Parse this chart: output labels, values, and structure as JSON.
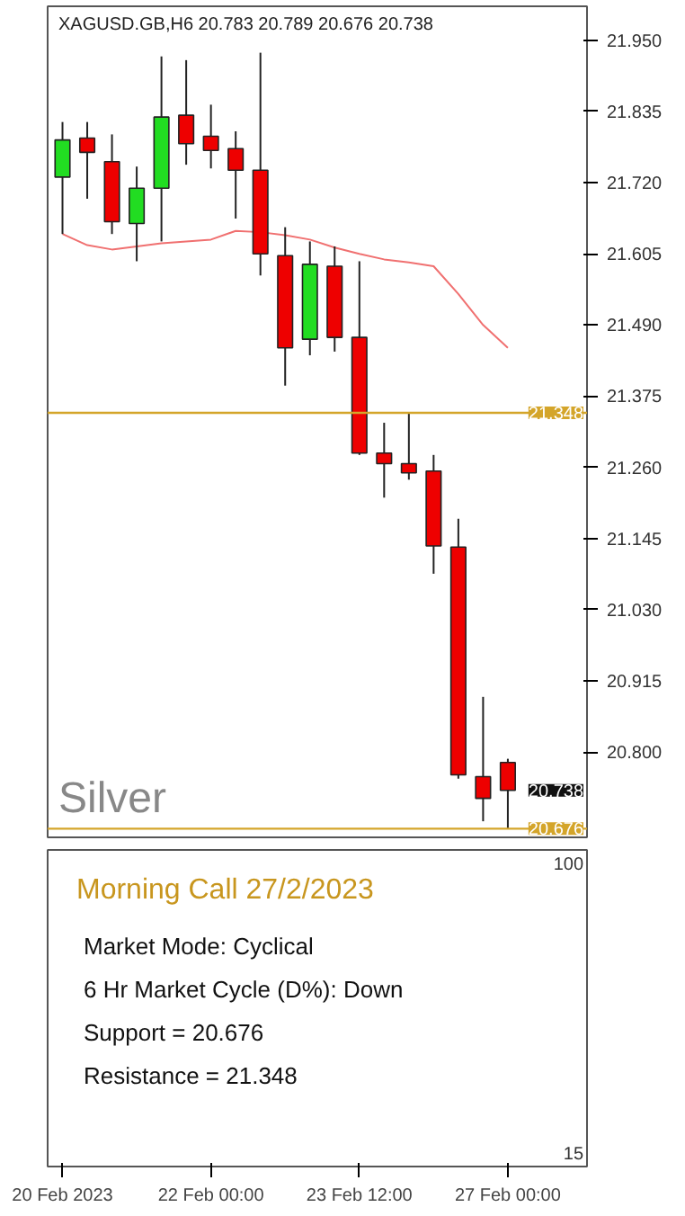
{
  "chart_data": [
    {
      "type": "candlestick",
      "title": "XAGUSD.GB,H6  20.783 20.789 20.676 20.738",
      "categories": [
        "20 Feb 2023",
        null,
        null,
        null,
        null,
        null,
        "22 Feb 00:00",
        null,
        null,
        null,
        null,
        null,
        "23 Feb 12:00",
        null,
        null,
        null,
        null,
        null,
        "27 Feb 00:00"
      ],
      "ohlc": [
        [
          21.729,
          21.818,
          21.637,
          21.789
        ],
        [
          21.792,
          21.818,
          21.694,
          21.769
        ],
        [
          21.754,
          21.798,
          21.637,
          21.657
        ],
        [
          21.654,
          21.746,
          21.593,
          21.711
        ],
        [
          21.711,
          21.924,
          21.625,
          21.826
        ],
        [
          21.829,
          21.918,
          21.749,
          21.783
        ],
        [
          21.795,
          21.846,
          21.743,
          21.772
        ],
        [
          21.775,
          21.803,
          21.662,
          21.74
        ],
        [
          21.74,
          21.93,
          21.57,
          21.605
        ],
        [
          21.602,
          21.648,
          21.392,
          21.453
        ],
        [
          21.467,
          21.625,
          21.441,
          21.588
        ],
        [
          21.585,
          21.617,
          21.447,
          21.47
        ],
        [
          21.47,
          21.593,
          21.28,
          21.283
        ],
        [
          21.283,
          21.332,
          21.211,
          21.266
        ],
        [
          21.266,
          21.349,
          21.24,
          21.251
        ],
        [
          21.254,
          21.28,
          21.088,
          21.133
        ],
        [
          21.131,
          21.177,
          20.757,
          20.763
        ],
        [
          20.76,
          20.889,
          20.688,
          20.725
        ],
        [
          20.783,
          20.789,
          20.676,
          20.738
        ]
      ],
      "colors": [
        "#22dd22",
        "#ee0000",
        "#ee0000",
        "#22dd22",
        "#22dd22",
        "#ee0000",
        "#ee0000",
        "#ee0000",
        "#ee0000",
        "#ee0000",
        "#22dd22",
        "#ee0000",
        "#ee0000",
        "#ee0000",
        "#ee0000",
        "#ee0000",
        "#ee0000",
        "#ee0000",
        "#ee0000"
      ],
      "series": [
        {
          "type": "line",
          "color": "#f07070",
          "values": [
            21.637,
            21.619,
            21.612,
            21.617,
            21.622,
            21.625,
            21.628,
            21.642,
            21.64,
            21.635,
            21.628,
            21.615,
            21.605,
            21.596,
            21.591,
            21.585,
            21.54,
            21.49,
            21.453
          ]
        }
      ],
      "ylim": [
        20.662,
        22.005
      ],
      "yticks": [
        {
          "value": 21.95,
          "label": "21.950"
        },
        {
          "value": 21.835,
          "label": "21.835"
        },
        {
          "value": 21.72,
          "label": "21.720"
        },
        {
          "value": 21.605,
          "label": "21.605"
        },
        {
          "value": 21.49,
          "label": "21.490"
        },
        {
          "value": 21.375,
          "label": "21.375"
        },
        {
          "value": 21.26,
          "label": "21.260"
        },
        {
          "value": 21.145,
          "label": "21.145"
        },
        {
          "value": 21.03,
          "label": "21.030"
        },
        {
          "value": 20.915,
          "label": "20.915"
        },
        {
          "value": 20.8,
          "label": "20.800"
        }
      ],
      "ref_lines": [
        {
          "axis": "y",
          "value": 21.348,
          "label": "21.348",
          "color": "#d4a52a"
        },
        {
          "axis": "y",
          "value": 20.676,
          "label": "20.676",
          "color": "#d4a52a"
        }
      ],
      "annotations": [
        "Silver",
        "20.738"
      ],
      "tick_labels": "y"
    },
    {
      "type": "other",
      "title": "Morning Call 27/2/2023",
      "annotations": [
        "Market Mode: Cyclical",
        "6 Hr Market Cycle (D%): Down",
        "Support = 20.676",
        "Resistance = 21.348",
        "100",
        "15"
      ]
    }
  ]
}
